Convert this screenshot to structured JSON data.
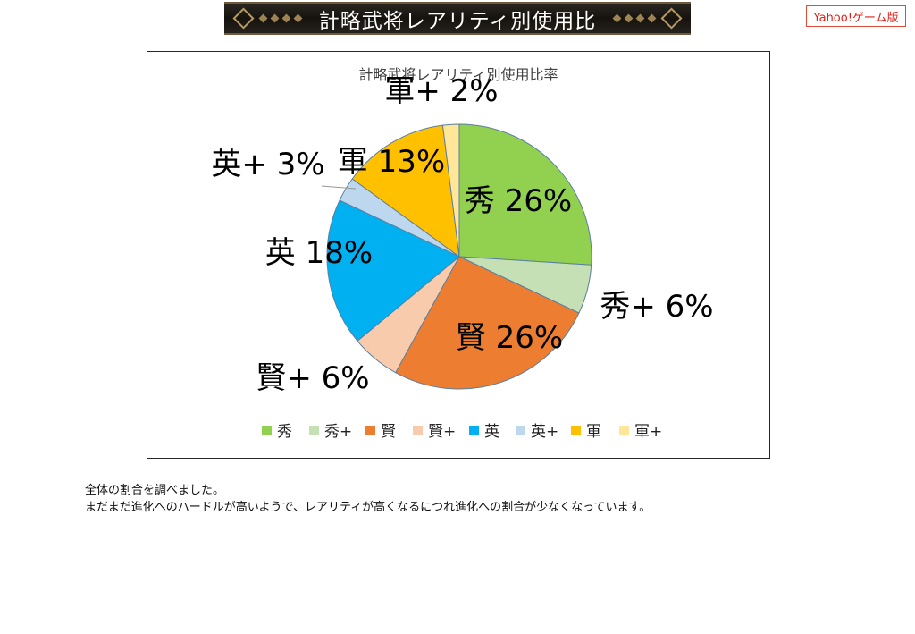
{
  "banner": {
    "title": "計略武将レアリティ別使用比"
  },
  "source_tag": "Yahoo!ゲーム版",
  "chart_data": {
    "type": "pie",
    "title": "計略武将レアリティ別使用比率",
    "slices": [
      {
        "label": "秀",
        "value": 26,
        "display": "秀 26%",
        "color": "#92d050"
      },
      {
        "label": "秀+",
        "value": 6,
        "display": "秀+ 6%",
        "color": "#c5e0b4"
      },
      {
        "label": "賢",
        "value": 26,
        "display": "賢 26%",
        "color": "#ed7d31"
      },
      {
        "label": "賢+",
        "value": 6,
        "display": "賢+ 6%",
        "color": "#f8cbad"
      },
      {
        "label": "英",
        "value": 18,
        "display": "英 18%",
        "color": "#00b0f0"
      },
      {
        "label": "英+",
        "value": 3,
        "display": "英+ 3%",
        "color": "#bdd7ee"
      },
      {
        "label": "軍",
        "value": 13,
        "display": "軍 13%",
        "color": "#ffc000"
      },
      {
        "label": "軍+",
        "value": 2,
        "display": "軍+ 2%",
        "color": "#ffe699"
      }
    ],
    "legend_position": "bottom"
  },
  "notes": [
    "全体の割合を調べました。",
    "まだまだ進化へのハードルが高いようで、レアリティが高くなるにつれ進化への割合が少なくなっています。"
  ]
}
